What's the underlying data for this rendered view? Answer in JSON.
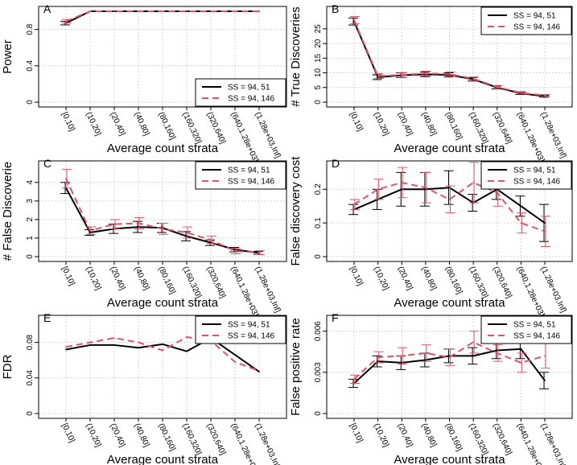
{
  "xlabel": "Average count strata",
  "categories": [
    "[0,10]",
    "(10,20]",
    "(20,40]",
    "(40,80]",
    "(80,160]",
    "(160,320]",
    "(320,640]",
    "(640,1.28e+03]",
    "(1.28e+03,Inf]"
  ],
  "legend": [
    "SS = 94, 51",
    "SS = 94, 146"
  ],
  "colors": {
    "series1": "#000000",
    "series2": "#df536b",
    "grid": "#d3d3d3"
  },
  "chart_data": [
    {
      "type": "line",
      "panel_label": "A",
      "ylabel": "Power",
      "yticks": [
        0.0,
        0.4,
        0.8
      ],
      "ylim": [
        0,
        1.0
      ],
      "legend_position": "bottom-right",
      "series": [
        {
          "name": "SS = 94, 51",
          "values": [
            0.87,
            1.0,
            1.0,
            1.0,
            1.0,
            1.0,
            1.0,
            1.0,
            1.0
          ],
          "err": [
            0.02,
            0,
            0,
            0,
            0,
            0,
            0,
            0,
            0
          ]
        },
        {
          "name": "SS = 94, 146",
          "values": [
            0.89,
            1.0,
            1.0,
            1.0,
            1.0,
            1.0,
            1.0,
            1.0,
            1.0
          ],
          "err": [
            0.02,
            0,
            0,
            0,
            0,
            0,
            0,
            0,
            0
          ]
        }
      ]
    },
    {
      "type": "line",
      "panel_label": "B",
      "ylabel": "# True Discoveries",
      "yticks": [
        0,
        5,
        10,
        15,
        20,
        25
      ],
      "ylim": [
        0,
        31
      ],
      "legend_position": "top-right",
      "series": [
        {
          "name": "SS = 94, 51",
          "values": [
            27.5,
            8.5,
            9.2,
            9.5,
            9.3,
            7.8,
            5.0,
            3.0,
            2.0
          ],
          "err": [
            1.2,
            0.8,
            0.8,
            0.8,
            0.7,
            0.6,
            0.5,
            0.4,
            0.3
          ]
        },
        {
          "name": "SS = 94, 146",
          "values": [
            28.0,
            8.9,
            9.3,
            9.8,
            9.6,
            8.0,
            5.2,
            3.2,
            2.3
          ],
          "err": [
            1.2,
            0.8,
            0.8,
            0.8,
            0.7,
            0.6,
            0.5,
            0.4,
            0.3
          ]
        }
      ]
    },
    {
      "type": "line",
      "panel_label": "C",
      "ylabel": "# False Discoverie",
      "yticks": [
        0,
        1,
        2,
        3,
        4
      ],
      "ylim": [
        0,
        4.9
      ],
      "legend_position": "top-right",
      "series": [
        {
          "name": "SS = 94, 51",
          "values": [
            3.7,
            1.3,
            1.5,
            1.6,
            1.55,
            1.1,
            0.75,
            0.38,
            0.2
          ],
          "err": [
            0.3,
            0.15,
            0.25,
            0.3,
            0.25,
            0.25,
            0.15,
            0.12,
            0.08
          ]
        },
        {
          "name": "SS = 94, 146",
          "values": [
            4.2,
            1.4,
            1.75,
            1.8,
            1.5,
            1.3,
            0.9,
            0.3,
            0.22
          ],
          "err": [
            0.5,
            0.2,
            0.25,
            0.3,
            0.3,
            0.3,
            0.2,
            0.15,
            0.1
          ]
        }
      ]
    },
    {
      "type": "line",
      "panel_label": "D",
      "ylabel": "False discovery cost",
      "yticks": [
        0.0,
        0.1,
        0.2
      ],
      "ylim": [
        0,
        0.27
      ],
      "legend_position": "top-right",
      "series": [
        {
          "name": "SS = 94, 51",
          "values": [
            0.14,
            0.17,
            0.2,
            0.2,
            0.205,
            0.16,
            0.2,
            0.15,
            0.1
          ],
          "err": [
            0.015,
            0.03,
            0.05,
            0.05,
            0.05,
            0.025,
            0.03,
            0.03,
            0.055
          ]
        },
        {
          "name": "SS = 94, 146",
          "values": [
            0.155,
            0.2,
            0.22,
            0.205,
            0.17,
            0.22,
            0.19,
            0.1,
            0.075
          ],
          "err": [
            0.015,
            0.03,
            0.045,
            0.045,
            0.04,
            0.06,
            0.04,
            0.03,
            0.045
          ]
        }
      ]
    },
    {
      "type": "line",
      "panel_label": "E",
      "ylabel": "FDR",
      "yticks": [
        0.0,
        0.04,
        0.08
      ],
      "ylim": [
        0,
        0.105
      ],
      "legend_position": "top-right",
      "series": [
        {
          "name": "SS = 94, 51",
          "values": [
            0.072,
            0.077,
            0.077,
            0.074,
            0.078,
            0.07,
            0.085,
            0.066,
            0.047
          ]
        },
        {
          "name": "SS = 94, 146",
          "values": [
            0.075,
            0.08,
            0.085,
            0.08,
            0.071,
            0.086,
            0.082,
            0.058,
            0.048
          ]
        }
      ]
    },
    {
      "type": "line",
      "panel_label": "F",
      "ylabel": "False positive rate",
      "yticks": [
        0.0,
        0.003,
        0.006
      ],
      "ylim": [
        0,
        0.0068
      ],
      "legend_position": "top-right",
      "series": [
        {
          "name": "SS = 94, 51",
          "values": [
            0.0022,
            0.0038,
            0.0037,
            0.0039,
            0.0042,
            0.0042,
            0.0046,
            0.0047,
            0.0024
          ],
          "err": [
            0.0003,
            0.0004,
            0.0005,
            0.0005,
            0.0005,
            0.0006,
            0.0006,
            0.0007,
            0.0006
          ]
        },
        {
          "name": "SS = 94, 146",
          "values": [
            0.0025,
            0.0041,
            0.0042,
            0.0044,
            0.0041,
            0.0052,
            0.0044,
            0.0037,
            0.0042
          ],
          "err": [
            0.0003,
            0.0004,
            0.0006,
            0.0006,
            0.0006,
            0.0008,
            0.0006,
            0.0007,
            0.0009
          ]
        }
      ]
    }
  ]
}
